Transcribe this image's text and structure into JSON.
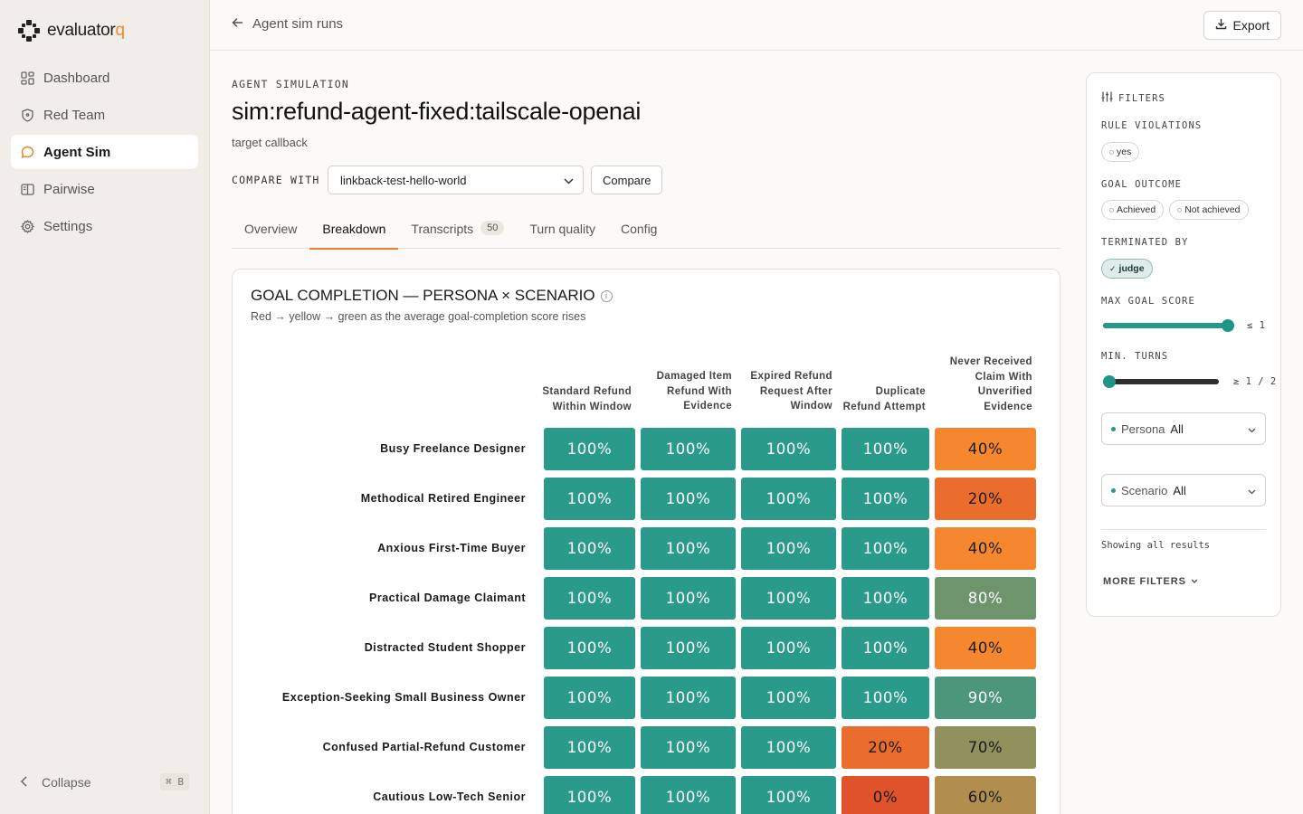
{
  "app": {
    "logo_text": "evaluator",
    "logo_accent": "q",
    "accent_color": "#f08a2d"
  },
  "sidebar": {
    "items": [
      {
        "label": "Dashboard",
        "icon": "grid-icon",
        "active": false
      },
      {
        "label": "Red Team",
        "icon": "shield-icon",
        "active": false
      },
      {
        "label": "Agent Sim",
        "icon": "chat-bubble-icon",
        "active": true
      },
      {
        "label": "Pairwise",
        "icon": "columns-icon",
        "active": false
      },
      {
        "label": "Settings",
        "icon": "gear-icon",
        "active": false
      }
    ],
    "collapse_label": "Collapse",
    "collapse_shortcut": "⌘ B"
  },
  "topbar": {
    "back_label": "Agent sim runs",
    "export_label": "Export"
  },
  "header": {
    "eyebrow": "AGENT SIMULATION",
    "title": "sim:refund-agent-fixed:tailscale-openai",
    "subtitle": "target callback",
    "compare_label": "COMPARE WITH",
    "compare_selected": "linkback-test-hello-world",
    "compare_button": "Compare"
  },
  "tabs": [
    {
      "label": "Overview",
      "active": false,
      "count": null
    },
    {
      "label": "Breakdown",
      "active": true,
      "count": null
    },
    {
      "label": "Transcripts",
      "active": false,
      "count": "50"
    },
    {
      "label": "Turn quality",
      "active": false,
      "count": null
    },
    {
      "label": "Config",
      "active": false,
      "count": null
    }
  ],
  "breakdown": {
    "title": "GOAL COMPLETION — PERSONA × SCENARIO",
    "subtitle": "Red → yellow → green as the average goal-completion score rises"
  },
  "chart_data": {
    "type": "heatmap",
    "title": "GOAL COMPLETION — PERSONA × SCENARIO",
    "columns": [
      "Standard Refund Within Window",
      "Damaged Item Refund With Evidence",
      "Expired Refund Request After Window",
      "Duplicate Refund Attempt",
      "Never Received Claim With Unverified Evidence"
    ],
    "rows": [
      "Busy Freelance Designer",
      "Methodical Retired Engineer",
      "Anxious First-Time Buyer",
      "Practical Damage Claimant",
      "Distracted Student Shopper",
      "Exception-Seeking Small Business Owner",
      "Confused Partial-Refund Customer",
      "Cautious Low-Tech Senior"
    ],
    "values": [
      [
        100,
        100,
        100,
        100,
        40
      ],
      [
        100,
        100,
        100,
        100,
        20
      ],
      [
        100,
        100,
        100,
        100,
        40
      ],
      [
        100,
        100,
        100,
        100,
        80
      ],
      [
        100,
        100,
        100,
        100,
        40
      ],
      [
        100,
        100,
        100,
        100,
        90
      ],
      [
        100,
        100,
        100,
        20,
        70
      ],
      [
        100,
        100,
        100,
        0,
        60
      ]
    ],
    "value_suffix": "%",
    "color_scale": {
      "low": "#e0522a",
      "mid": "#f5882f",
      "high": "#2a9a8b"
    }
  },
  "filters": {
    "heading": "FILTERS",
    "rule_violations_label": "RULE VIOLATIONS",
    "rule_violations_chips": [
      {
        "label": "yes",
        "on": false
      }
    ],
    "goal_outcome_label": "GOAL OUTCOME",
    "goal_outcome_chips": [
      {
        "label": "Achieved",
        "on": false
      },
      {
        "label": "Not achieved",
        "on": false
      }
    ],
    "terminated_by_label": "TERMINATED BY",
    "terminated_by_chips": [
      {
        "label": "judge",
        "on": true
      }
    ],
    "max_goal_label": "MAX GOAL SCORE",
    "max_goal_value": 1,
    "max_goal_text": "≤ 1",
    "min_turns_label": "MIN. TURNS",
    "min_turns_value": 1,
    "min_turns_max": 2,
    "min_turns_text": "≥ 1 / 2",
    "persona_label": "Persona",
    "persona_value": "All",
    "scenario_label": "Scenario",
    "scenario_value": "All",
    "showing_text": "Showing all results",
    "more_label": "MORE FILTERS"
  }
}
